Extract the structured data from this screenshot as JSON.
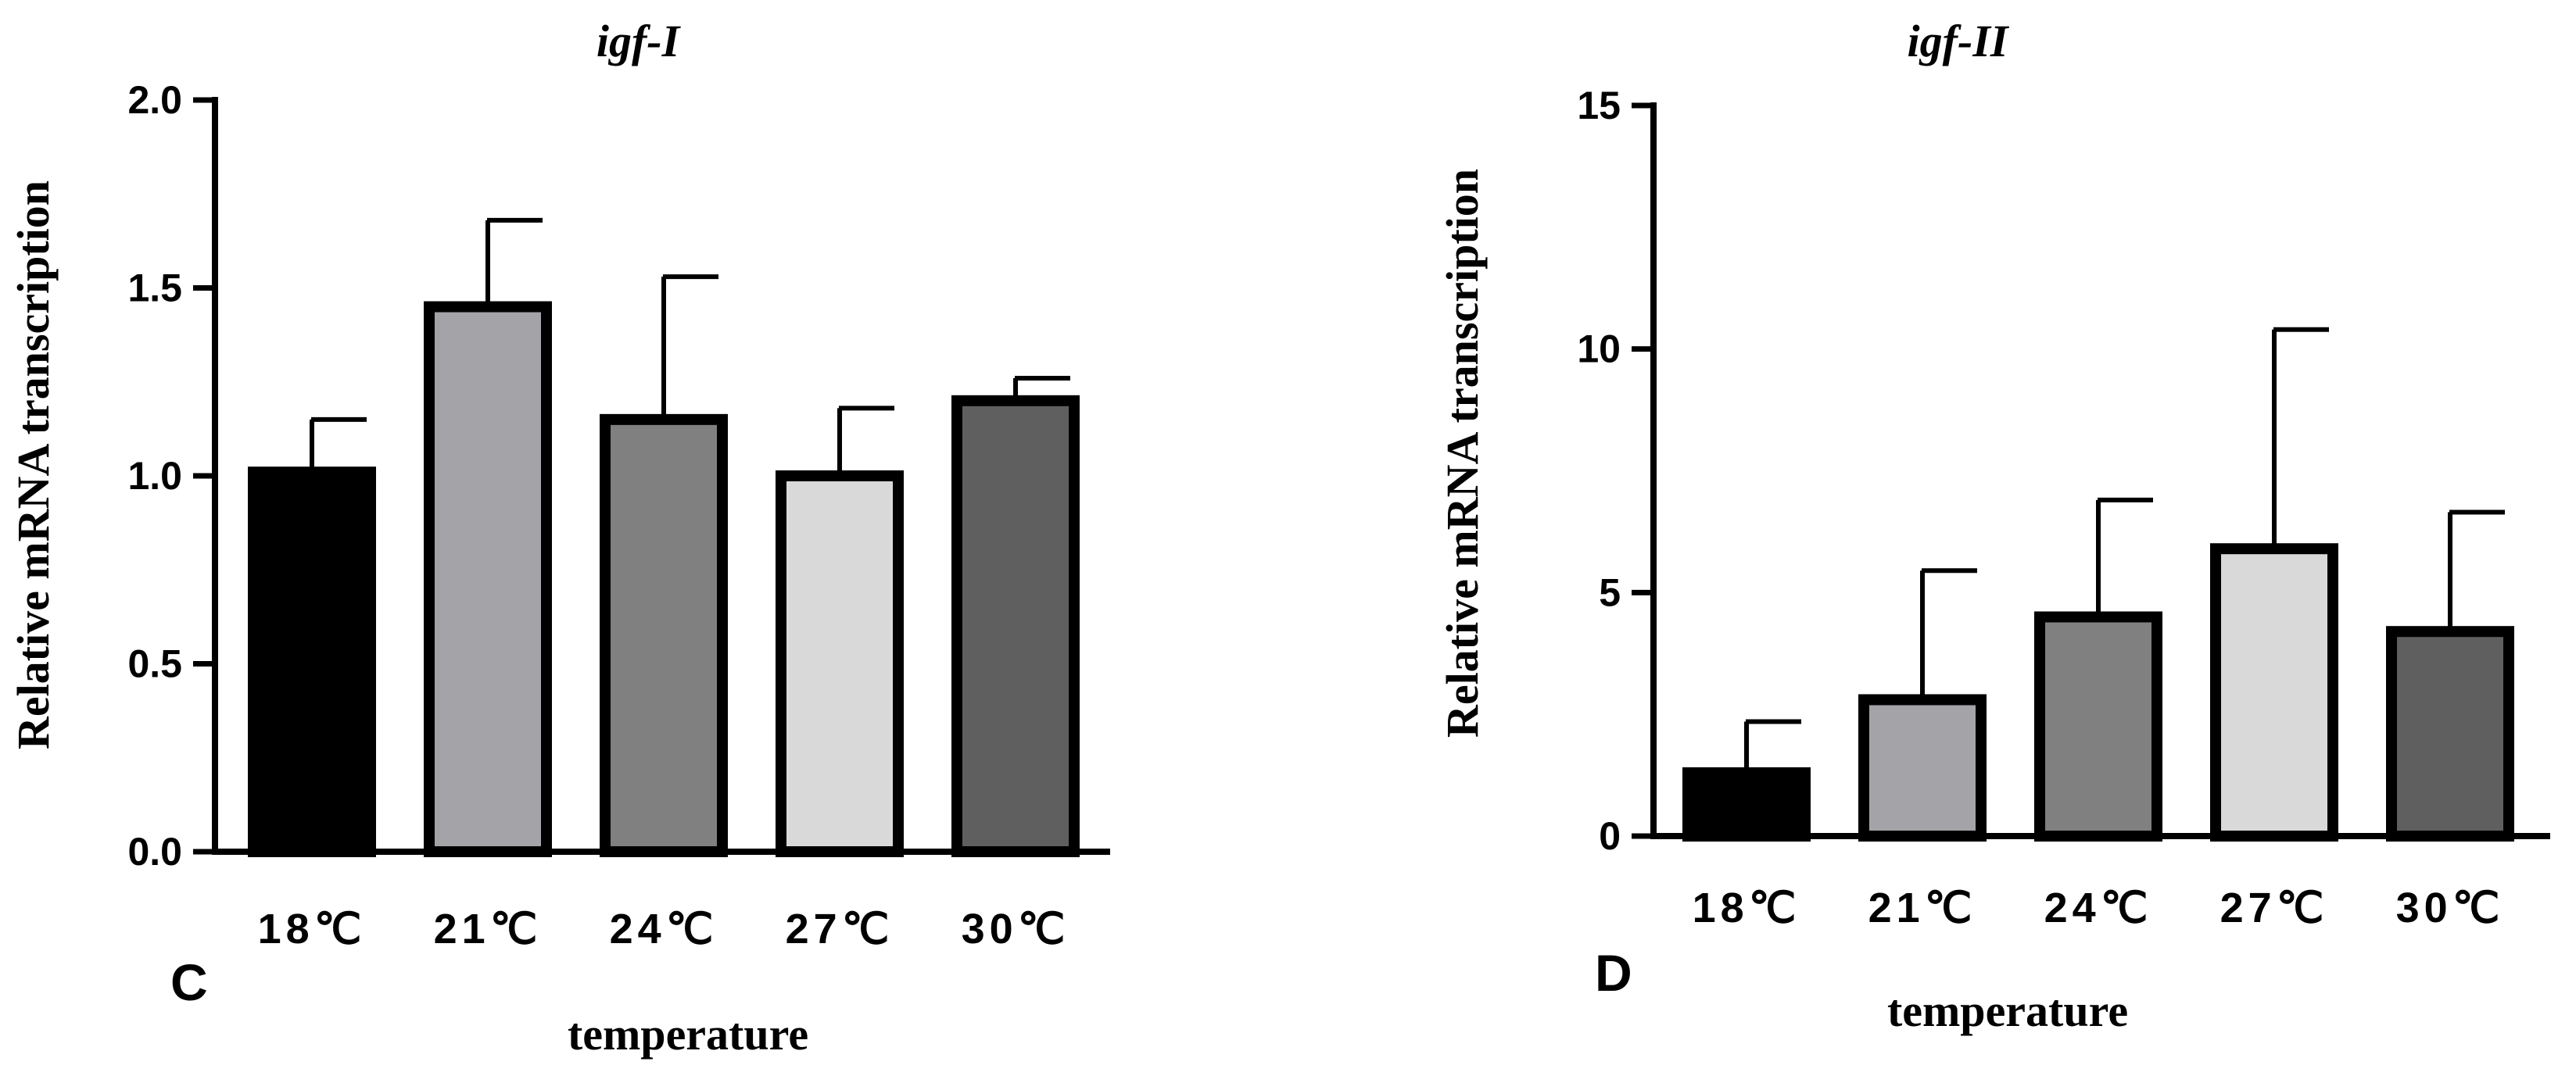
{
  "chart_data": [
    {
      "type": "bar",
      "panel_label": "C",
      "title": "igf-I",
      "xlabel": "temperature",
      "ylabel": "Relative mRNA transcription",
      "categories": [
        "18℃",
        "21℃",
        "24℃",
        "27℃",
        "30℃"
      ],
      "values": [
        1.01,
        1.45,
        1.15,
        1.0,
        1.2
      ],
      "errors": [
        0.14,
        0.23,
        0.38,
        0.18,
        0.06
      ],
      "ylim": [
        0,
        2.0
      ],
      "yticks": [
        0.0,
        0.5,
        1.0,
        1.5,
        2.0
      ],
      "ytick_labels": [
        "0.0",
        "0.5",
        "1.0",
        "1.5",
        "2.0"
      ],
      "bar_colors": [
        "#000000",
        "#a3a3a8",
        "#808080",
        "#d9d9d9",
        "#5f5f5f"
      ],
      "grid": false
    },
    {
      "type": "bar",
      "panel_label": "D",
      "title": "igf-II",
      "xlabel": "temperature",
      "ylabel": "Relative mRNA transcription",
      "categories": [
        "18℃",
        "21℃",
        "24℃",
        "27℃",
        "30℃"
      ],
      "values": [
        1.3,
        2.8,
        4.5,
        5.9,
        4.2
      ],
      "errors": [
        1.05,
        2.65,
        2.4,
        4.5,
        2.45
      ],
      "ylim": [
        0,
        15
      ],
      "yticks": [
        0,
        5,
        10,
        15
      ],
      "ytick_labels": [
        "0",
        "5",
        "10",
        "15"
      ],
      "bar_colors": [
        "#000000",
        "#a3a3a8",
        "#808080",
        "#d9d9d9",
        "#5f5f5f"
      ],
      "grid": false
    }
  ]
}
